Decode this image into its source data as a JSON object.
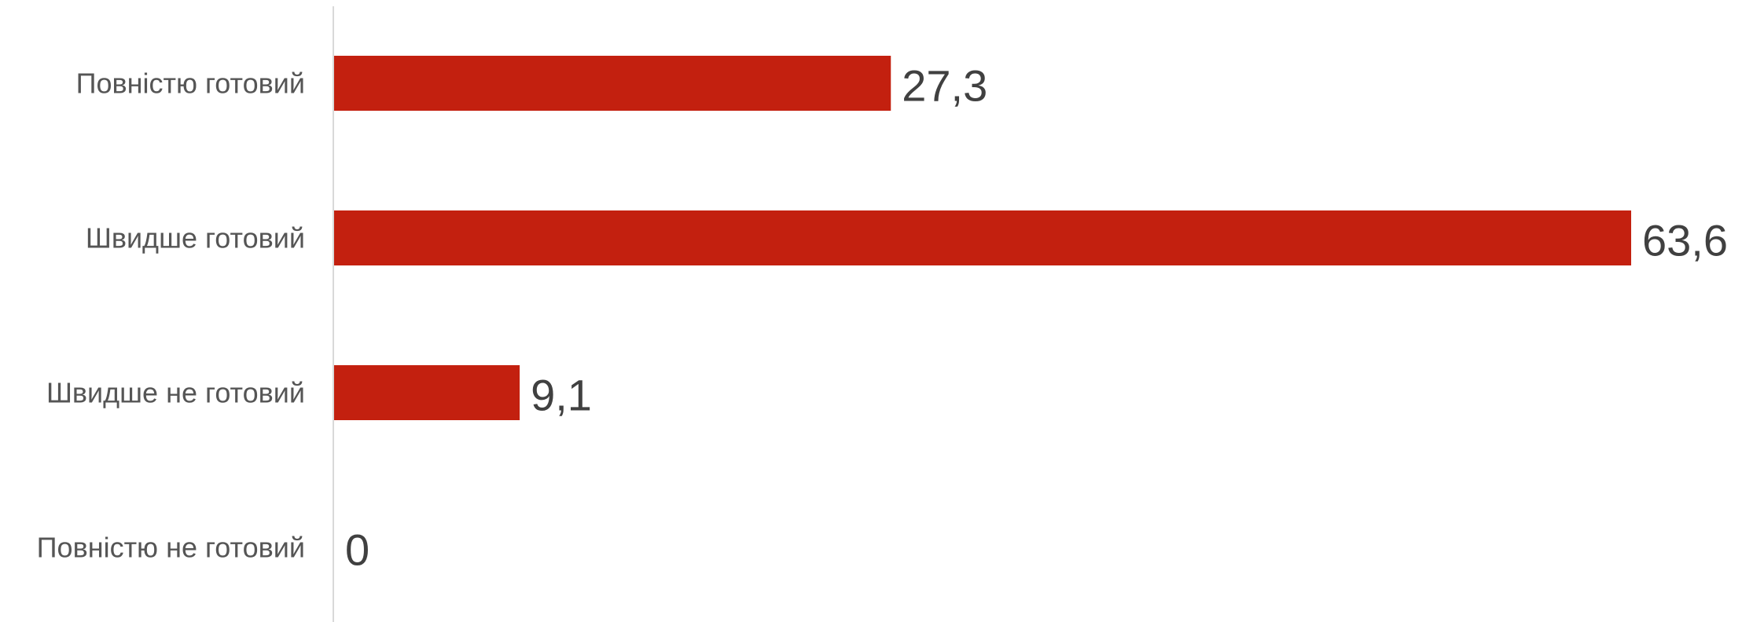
{
  "chart_data": {
    "type": "bar",
    "orientation": "horizontal",
    "categories": [
      "Повністю готовий",
      "Швидше готовий",
      "Швидше не готовий",
      "Повністю не готовий"
    ],
    "values": [
      27.3,
      63.6,
      9.1,
      0
    ],
    "value_labels": [
      "27,3",
      "63,6",
      "9,1",
      "0"
    ],
    "xlim": [
      0,
      63.6
    ],
    "grid": false,
    "legend": "none",
    "colors": {
      "bar": "#c3200f",
      "axis": "#d9d9d9",
      "category_text": "#555555",
      "value_text": "#404040"
    }
  }
}
